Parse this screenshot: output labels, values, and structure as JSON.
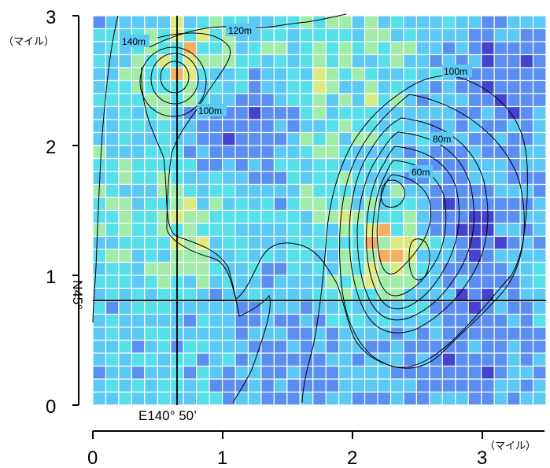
{
  "map": {
    "grid": {
      "rows": 30,
      "cols": 35,
      "colors": {
        "deep_blue": "#4343d0",
        "blue": "#5a8ef0",
        "sky": "#5cc8f4",
        "cyan": "#58e0ea",
        "green": "#a2ecaa",
        "yellow": "#dcea84",
        "orange": "#f4ae60",
        "red": "#f08a5e",
        "grid_line": "#ffffff"
      }
    },
    "y_axis": {
      "ticks": [
        "0",
        "1",
        "2",
        "3"
      ],
      "unit": "（マイル）"
    },
    "x_axis": {
      "ticks": [
        "0",
        "1",
        "2",
        "3"
      ],
      "unit": "（マイル）"
    },
    "contour_labels": [
      "140m",
      "120m",
      "100m",
      "100m",
      "80m",
      "60m"
    ],
    "latitude_label": "N45°",
    "longitude_label": "E140° 50’"
  }
}
